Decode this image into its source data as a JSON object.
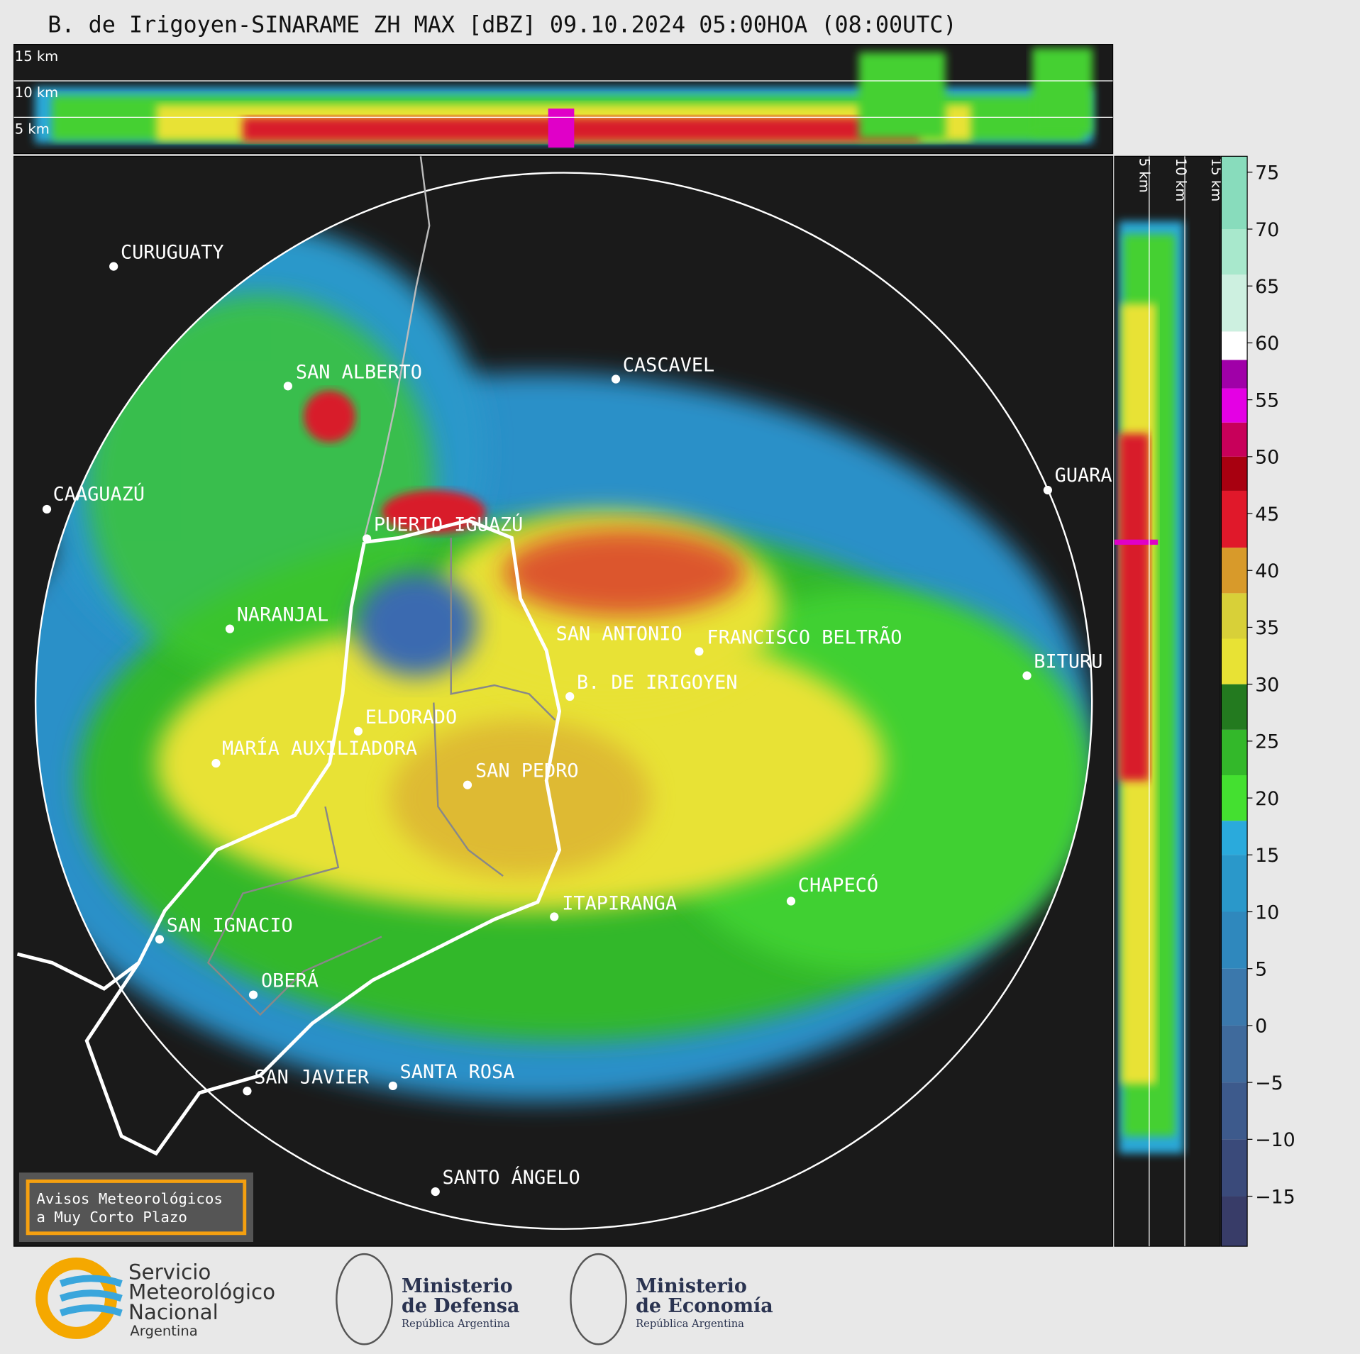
{
  "header": {
    "title": "B. de Irigoyen-SINARAME ZH MAX [dBZ] 09.10.2024 05:00HOA (08:00UTC)"
  },
  "top_panel": {
    "labels": [
      "15 km",
      "10 km",
      "5 km"
    ]
  },
  "side_panel": {
    "labels": [
      "5 km",
      "10 km",
      "15 km"
    ]
  },
  "cities": [
    "CURUGUATY",
    "SAN ALBERTO",
    "CASCAVEL",
    "CAAGUAZÚ",
    "GUARA",
    "PUERTO IGUAZÚ",
    "NARANJAL",
    "SAN ANTONIO",
    "FRANCISCO BELTRÃO",
    "BITURU",
    "B. DE IRIGOYEN",
    "ELDORADO",
    "MARÍA AUXILIADORA",
    "SAN PEDRO",
    "CHAPECÓ",
    "ITAPIRANGA",
    "SAN IGNACIO",
    "OBERÁ",
    "SAN JAVIER",
    "SANTA ROSA",
    "SANTO ÁNGELO"
  ],
  "colorbar": {
    "lim": [
      -19.4,
      76.4
    ],
    "ticks": [
      75,
      70,
      65,
      60,
      55,
      50,
      45,
      40,
      35,
      30,
      25,
      20,
      15,
      10,
      5,
      0,
      {
        "value": -5,
        "label": "−5"
      },
      {
        "value": -10,
        "label": "−10"
      },
      {
        "value": -15,
        "label": "−15"
      }
    ],
    "steps": [
      {
        "from": -20,
        "color": "#383c68"
      },
      {
        "from": -15,
        "color": "#3a4a7a"
      },
      {
        "from": -10,
        "color": "#3d5a8c"
      },
      {
        "from": -5,
        "color": "#3f6a9c"
      },
      {
        "from": 0,
        "color": "#3b78ac"
      },
      {
        "from": 5,
        "color": "#2f88bd"
      },
      {
        "from": 10,
        "color": "#2a98ca"
      },
      {
        "from": 15,
        "color": "#2aaadc"
      },
      {
        "from": 18,
        "color": "#44e030"
      },
      {
        "from": 22,
        "color": "#33b82a"
      },
      {
        "from": 26,
        "color": "#237a1f"
      },
      {
        "from": 30,
        "color": "#e8e234"
      },
      {
        "from": 34,
        "color": "#d8d038"
      },
      {
        "from": 38,
        "color": "#d89a2a"
      },
      {
        "from": 42,
        "color": "#e0182a"
      },
      {
        "from": 47,
        "color": "#a80010"
      },
      {
        "from": 50,
        "color": "#c8005a"
      },
      {
        "from": 53,
        "color": "#e400e4"
      },
      {
        "from": 56,
        "color": "#a000a8"
      },
      {
        "from": 58.5,
        "color": "#ffffff"
      },
      {
        "from": 61,
        "color": "#cdf0e0"
      },
      {
        "from": 66,
        "color": "#a8e8cc"
      },
      {
        "from": 70,
        "color": "#88dcbc"
      }
    ]
  },
  "warning_box": {
    "lines": [
      "Avisos Meteorológicos",
      "a Muy Corto Plazo"
    ]
  },
  "logos": {
    "smn": [
      "Servicio",
      "Meteorológico",
      "Nacional",
      "Argentina"
    ],
    "defensa": [
      "Ministerio",
      "de Defensa",
      "República Argentina"
    ],
    "economia": [
      "Ministerio",
      "de Economía",
      "República Argentina"
    ]
  }
}
